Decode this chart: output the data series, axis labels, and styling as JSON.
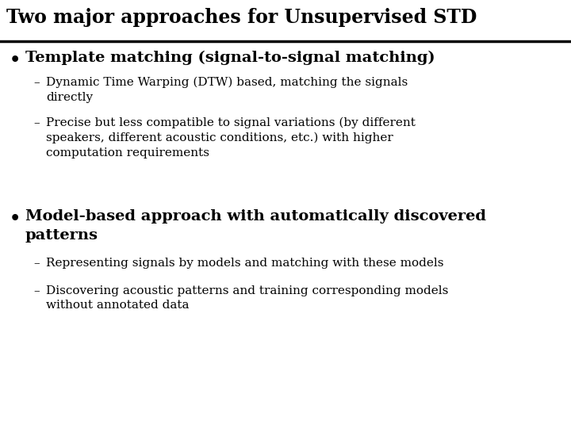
{
  "title": "Two major approaches for Unsupervised STD",
  "background_color": "#ffffff",
  "title_fontsize": 17,
  "title_font": "DejaVu Serif",
  "bullet1_text": "Template matching (signal-to-signal matching)",
  "bullet1_fontsize": 14,
  "sub1_1": "Dynamic Time Warping (DTW) based, matching the signals\ndirectly",
  "sub1_2": "Precise but less compatible to signal variations (by different\nspeakers, different acoustic conditions, etc.) with higher\ncomputation requirements",
  "bullet2_text": "Model-based approach with automatically discovered\npatterns",
  "bullet2_fontsize": 14,
  "sub2_1": "Representing signals by models and matching with these models",
  "sub2_2": "Discovering acoustic patterns and training corresponding models\nwithout annotated data",
  "sub_fontsize": 11,
  "text_color": "#000000",
  "line_color": "#000000"
}
